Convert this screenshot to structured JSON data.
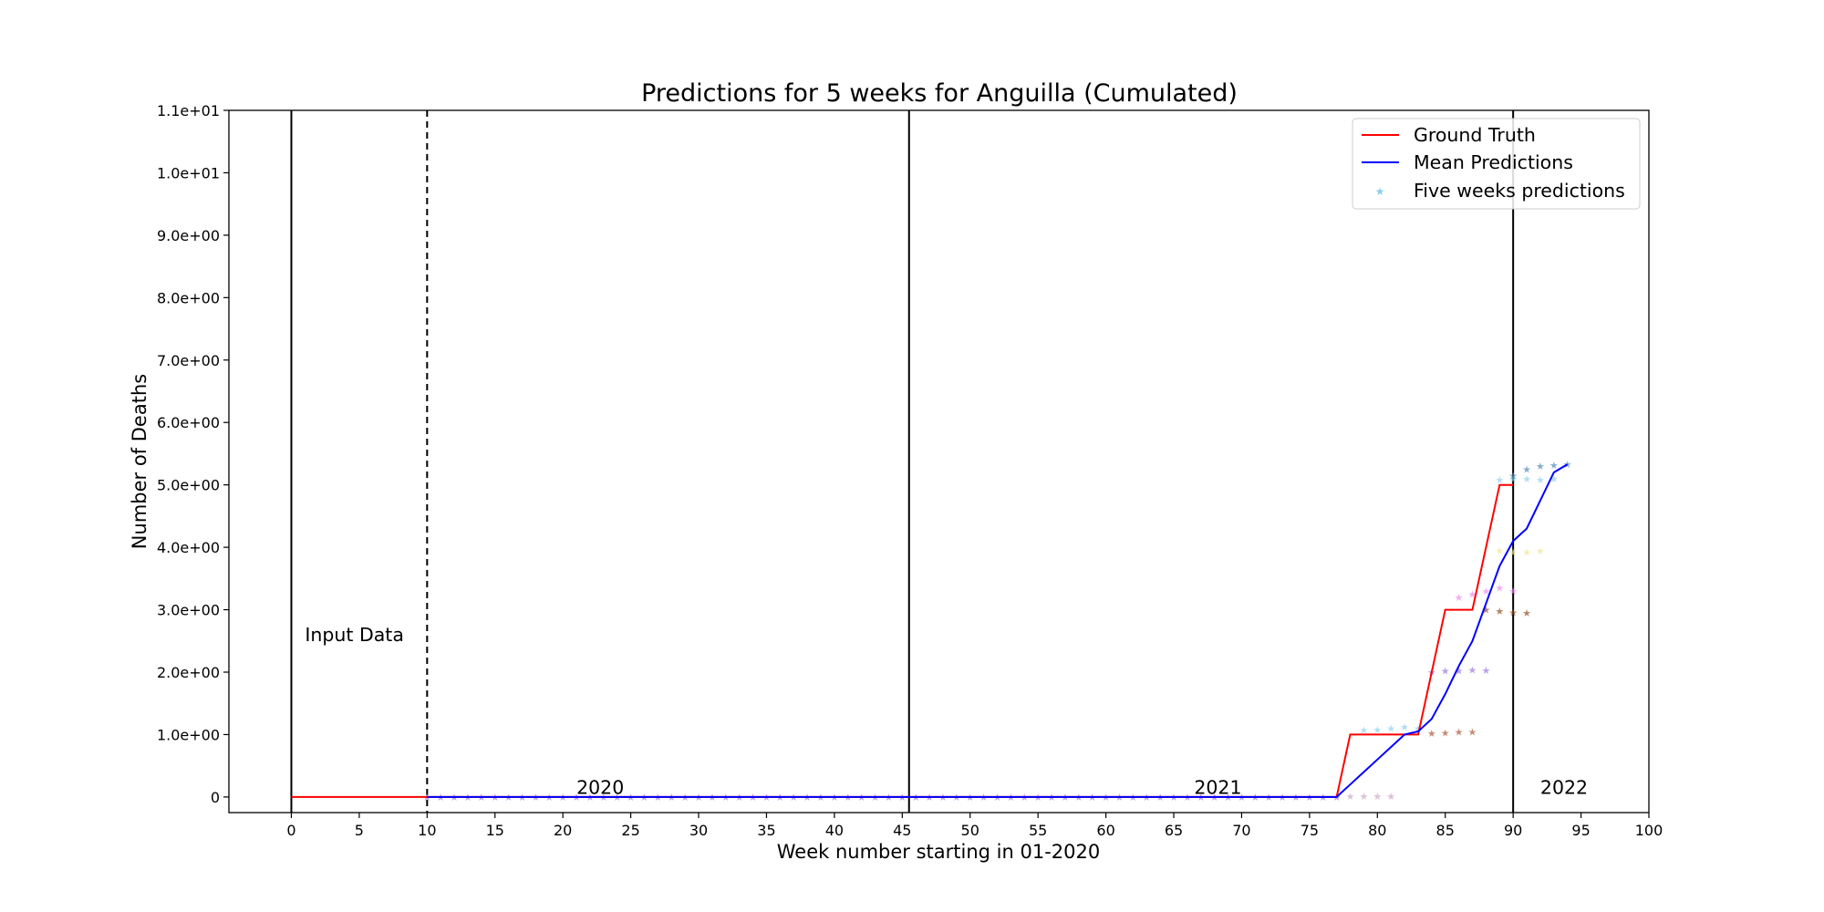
{
  "chart_data": {
    "type": "line",
    "title": "Predictions for 5 weeks for Anguilla (Cumulated)",
    "xlabel": "Week number starting in 01-2020",
    "ylabel": "Number of Deaths",
    "xlim": [
      -4.6,
      100
    ],
    "ylim": [
      -0.25,
      11
    ],
    "xticks": [
      0,
      5,
      10,
      15,
      20,
      25,
      30,
      35,
      40,
      45,
      50,
      55,
      60,
      65,
      70,
      75,
      80,
      85,
      90,
      95,
      100
    ],
    "yticks": [
      0,
      1,
      2,
      3,
      4,
      5,
      6,
      7,
      8,
      9,
      10,
      11
    ],
    "ytick_labels": [
      "0",
      "1.0e+00",
      "2.0e+00",
      "3.0e+00",
      "4.0e+00",
      "5.0e+00",
      "6.0e+00",
      "7.0e+00",
      "8.0e+00",
      "9.0e+00",
      "1.0e+01",
      "1.1e+01"
    ],
    "grid": false,
    "legend_position": "top-right",
    "legend": [
      "Ground Truth",
      "Mean Predictions",
      "Five weeks predictions"
    ],
    "colors": {
      "ground_truth": "#ff0000",
      "mean": "#0000ff",
      "stars": "#87ceeb"
    },
    "vlines": [
      {
        "x": 0,
        "style": "solid"
      },
      {
        "x": 10,
        "style": "dashed"
      },
      {
        "x": 45.5,
        "style": "solid"
      },
      {
        "x": 90,
        "style": "solid"
      }
    ],
    "annotations": [
      {
        "text": "Input Data",
        "x": 1,
        "y": 2.5
      },
      {
        "text": "2020",
        "x": 21,
        "y": 0.05
      },
      {
        "text": "2021",
        "x": 66.5,
        "y": 0.05
      },
      {
        "text": "2022",
        "x": 92,
        "y": 0.05
      }
    ],
    "series": [
      {
        "name": "Ground Truth",
        "points": [
          [
            0,
            0
          ],
          [
            77,
            0
          ],
          [
            78,
            1
          ],
          [
            83,
            1
          ],
          [
            85,
            3
          ],
          [
            87,
            3
          ],
          [
            89,
            5
          ],
          [
            90,
            5
          ]
        ]
      },
      {
        "name": "Mean Predictions",
        "points": [
          [
            10,
            0
          ],
          [
            77,
            0
          ],
          [
            78,
            0.2
          ],
          [
            79,
            0.4
          ],
          [
            80,
            0.6
          ],
          [
            81,
            0.8
          ],
          [
            82,
            1.0
          ],
          [
            83,
            1.05
          ],
          [
            84,
            1.25
          ],
          [
            85,
            1.65
          ],
          [
            86,
            2.1
          ],
          [
            87,
            2.5
          ],
          [
            88,
            3.1
          ],
          [
            89,
            3.7
          ],
          [
            90,
            4.1
          ],
          [
            91,
            4.3
          ],
          [
            92,
            4.75
          ],
          [
            93,
            5.2
          ],
          [
            94,
            5.33
          ]
        ]
      },
      {
        "name": "Five weeks predictions",
        "groups": [
          {
            "color": "#87ceeb",
            "points": [
              [
                79,
                1.07
              ],
              [
                80,
                1.08
              ],
              [
                81,
                1.1
              ],
              [
                82,
                1.12
              ],
              [
                83,
                1.1
              ]
            ]
          },
          {
            "color": "#a0522d",
            "points": [
              [
                84,
                1.02
              ],
              [
                85,
                1.03
              ],
              [
                86,
                1.04
              ],
              [
                87,
                1.04
              ]
            ]
          },
          {
            "color": "#9370db",
            "points": [
              [
                84,
                2.0
              ],
              [
                85,
                2.02
              ],
              [
                86,
                2.02
              ],
              [
                87,
                2.04
              ],
              [
                88,
                2.03
              ]
            ]
          },
          {
            "color": "#ee82ee",
            "points": [
              [
                86,
                3.2
              ],
              [
                87,
                3.25
              ],
              [
                88,
                3.3
              ],
              [
                89,
                3.35
              ],
              [
                90,
                3.3
              ]
            ]
          },
          {
            "color": "#8b4513",
            "points": [
              [
                88,
                3.0
              ],
              [
                89,
                2.98
              ],
              [
                90,
                2.96
              ],
              [
                91,
                2.95
              ]
            ]
          },
          {
            "color": "#f0e68c",
            "points": [
              [
                89,
                3.95
              ],
              [
                90,
                3.92
              ],
              [
                91,
                3.92
              ],
              [
                92,
                3.94
              ]
            ]
          },
          {
            "color": "#87ceeb",
            "points": [
              [
                89,
                5.08
              ],
              [
                90,
                5.1
              ],
              [
                91,
                5.1
              ],
              [
                92,
                5.08
              ],
              [
                93,
                5.1
              ]
            ]
          },
          {
            "color": "#4682b4",
            "points": [
              [
                90,
                5.15
              ],
              [
                91,
                5.25
              ],
              [
                92,
                5.3
              ],
              [
                93,
                5.32
              ],
              [
                94,
                5.33
              ]
            ]
          },
          {
            "color": "#c8a2c8",
            "points": [
              [
                78,
                0.01
              ],
              [
                79,
                0.01
              ],
              [
                80,
                0.01
              ],
              [
                81,
                0.01
              ]
            ]
          },
          {
            "color": "#9370db",
            "points": [
              [
                10,
                0
              ],
              [
                11,
                0
              ],
              [
                12,
                0
              ],
              [
                13,
                0
              ],
              [
                14,
                0
              ],
              [
                15,
                0
              ],
              [
                16,
                0
              ],
              [
                17,
                0
              ],
              [
                18,
                0
              ],
              [
                19,
                0
              ],
              [
                20,
                0
              ],
              [
                21,
                0
              ],
              [
                22,
                0
              ],
              [
                23,
                0
              ],
              [
                24,
                0
              ],
              [
                25,
                0
              ],
              [
                26,
                0
              ],
              [
                27,
                0
              ],
              [
                28,
                0
              ],
              [
                29,
                0
              ],
              [
                30,
                0
              ],
              [
                31,
                0
              ],
              [
                32,
                0
              ],
              [
                33,
                0
              ],
              [
                34,
                0
              ],
              [
                35,
                0
              ],
              [
                36,
                0
              ],
              [
                37,
                0
              ],
              [
                38,
                0
              ],
              [
                39,
                0
              ],
              [
                40,
                0
              ],
              [
                41,
                0
              ],
              [
                42,
                0
              ],
              [
                43,
                0
              ],
              [
                44,
                0
              ],
              [
                45,
                0
              ],
              [
                46,
                0
              ],
              [
                47,
                0
              ],
              [
                48,
                0
              ],
              [
                49,
                0
              ],
              [
                50,
                0
              ],
              [
                51,
                0
              ],
              [
                52,
                0
              ],
              [
                53,
                0
              ],
              [
                54,
                0
              ],
              [
                55,
                0
              ],
              [
                56,
                0
              ],
              [
                57,
                0
              ],
              [
                58,
                0
              ],
              [
                59,
                0
              ],
              [
                60,
                0
              ],
              [
                61,
                0
              ],
              [
                62,
                0
              ],
              [
                63,
                0
              ],
              [
                64,
                0
              ],
              [
                65,
                0
              ],
              [
                66,
                0
              ],
              [
                67,
                0
              ],
              [
                68,
                0
              ],
              [
                69,
                0
              ],
              [
                70,
                0
              ],
              [
                71,
                0
              ],
              [
                72,
                0
              ],
              [
                73,
                0
              ],
              [
                74,
                0
              ],
              [
                75,
                0
              ],
              [
                76,
                0
              ],
              [
                77,
                0
              ]
            ]
          }
        ]
      }
    ]
  }
}
